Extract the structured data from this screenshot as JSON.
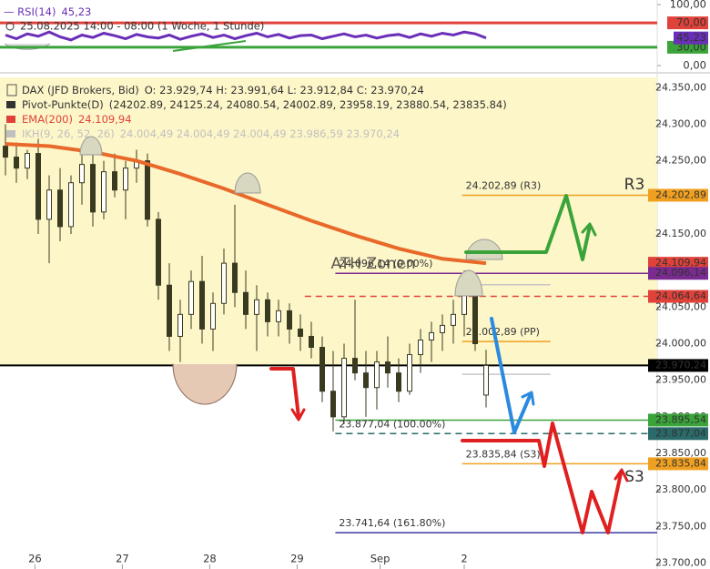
{
  "chart_data": [
    {
      "type": "line",
      "title": "RSI(14)",
      "subtitle": "25.08.2025 14:00 - 08:00 (1 Woche, 1 Stunde)",
      "series": [
        {
          "name": "RSI(14)",
          "color": "#6a2fb8",
          "last_label": "45,23",
          "values": [
            50,
            44,
            52,
            48,
            55,
            47,
            42,
            50,
            46,
            53,
            49,
            44,
            51,
            47,
            45,
            50,
            43,
            48,
            52,
            46,
            50,
            44,
            49,
            53,
            47,
            51,
            45,
            49,
            50,
            44,
            48,
            52,
            47,
            50,
            45,
            49,
            51,
            46,
            52,
            48,
            53,
            50,
            55,
            52,
            45.23
          ]
        }
      ],
      "ylim": [
        -9,
        107.5
      ],
      "yticks": [
        {
          "value": 100,
          "label": "100,00"
        },
        {
          "value": 0,
          "label": "0,00"
        }
      ],
      "levels": [
        {
          "value": 70,
          "label": "70,00",
          "color": "#e0423a"
        },
        {
          "value": 30,
          "label": "30,00",
          "color": "#3aa33a"
        }
      ]
    },
    {
      "type": "candlestick",
      "title": "DAX (JFD Brokers, Bid)",
      "ohlc_label": "O: 23.929,74  H: 23.991,64  L: 23.912,84  C: 23.970,24",
      "indicators": [
        {
          "name": "Pivot-Punkte(D)",
          "text": "(24202.89, 24125.24, 24080.54, 24002.89, 23958.19, 23880.54, 23835.84)",
          "color": "#333333"
        },
        {
          "name": "EMA(200)",
          "text": "24.109,94",
          "color": "#e0423a"
        },
        {
          "name": "IKH(9, 26, 52, 26)",
          "text": "24.004,49  24.004,49  24.004,49  23.986,59  23.970,24",
          "color": "#c0c0c0"
        }
      ],
      "candles": [
        [
          24270,
          24300,
          24230,
          24255
        ],
        [
          24255,
          24275,
          24220,
          24240
        ],
        [
          24240,
          24265,
          24225,
          24260
        ],
        [
          24260,
          24280,
          24150,
          24170
        ],
        [
          24170,
          24230,
          24110,
          24210
        ],
        [
          24210,
          24240,
          24140,
          24160
        ],
        [
          24160,
          24230,
          24150,
          24220
        ],
        [
          24220,
          24260,
          24190,
          24245
        ],
        [
          24245,
          24270,
          24160,
          24180
        ],
        [
          24180,
          24250,
          24170,
          24235
        ],
        [
          24235,
          24260,
          24200,
          24210
        ],
        [
          24210,
          24250,
          24170,
          24240
        ],
        [
          24240,
          24265,
          24220,
          24250
        ],
        [
          24250,
          24260,
          24160,
          24170
        ],
        [
          24170,
          24180,
          24060,
          24080
        ],
        [
          24080,
          24110,
          23990,
          24010
        ],
        [
          24010,
          24060,
          23975,
          24040
        ],
        [
          24040,
          24100,
          24020,
          24085
        ],
        [
          24085,
          24120,
          24000,
          24020
        ],
        [
          24020,
          24070,
          23990,
          24055
        ],
        [
          24055,
          24130,
          24040,
          24110
        ],
        [
          24110,
          24190,
          24050,
          24070
        ],
        [
          24070,
          24100,
          24020,
          24040
        ],
        [
          24040,
          24080,
          23990,
          24060
        ],
        [
          24060,
          24070,
          24010,
          24030
        ],
        [
          24030,
          24060,
          24010,
          24045
        ],
        [
          24045,
          24055,
          24000,
          24020
        ],
        [
          24020,
          24040,
          23990,
          24010
        ],
        [
          24010,
          24030,
          23980,
          23995
        ],
        [
          23995,
          24010,
          23920,
          23935
        ],
        [
          23935,
          23990,
          23880,
          23900
        ],
        [
          23900,
          24000,
          23890,
          23980
        ],
        [
          23980,
          24060,
          23950,
          23960
        ],
        [
          23960,
          23990,
          23900,
          23940
        ],
        [
          23940,
          23990,
          23910,
          23975
        ],
        [
          23975,
          24010,
          23940,
          23960
        ],
        [
          23960,
          23980,
          23920,
          23935
        ],
        [
          23935,
          24000,
          23930,
          23985
        ],
        [
          23985,
          24020,
          23960,
          24005
        ],
        [
          24005,
          24030,
          23975,
          24015
        ],
        [
          24015,
          24040,
          23990,
          24025
        ],
        [
          24025,
          24060,
          24000,
          24040
        ],
        [
          24040,
          24100,
          24010,
          24070
        ],
        [
          24070,
          24080,
          23990,
          24000
        ],
        [
          23929.74,
          23991.64,
          23912.84,
          23970.24
        ]
      ],
      "up_color": "#ffffff",
      "down_color": "#3a3a20",
      "ema": {
        "color": "#e8692a",
        "x": [
          0,
          4,
          8,
          12,
          16,
          20,
          24,
          28,
          32,
          36,
          40,
          44
        ],
        "values": [
          24273,
          24270,
          24262,
          24250,
          24232,
          24212,
          24190,
          24168,
          24148,
          24130,
          24116,
          24109.94
        ]
      },
      "ylim": [
        23692,
        24364
      ],
      "yticks": [
        {
          "value": 24350,
          "label": "24.350,00"
        },
        {
          "value": 24300,
          "label": "24.300,00"
        },
        {
          "value": 24250,
          "label": "24.250,00"
        },
        {
          "value": 24200,
          "label": "24.200,00"
        },
        {
          "value": 24150,
          "label": "24.150,00"
        },
        {
          "value": 24100,
          "label": "24.100,00"
        },
        {
          "value": 24050,
          "label": "24.050,00"
        },
        {
          "value": 24000,
          "label": "24.000,00"
        },
        {
          "value": 23950,
          "label": "23.950,00"
        },
        {
          "value": 23900,
          "label": "23.900,00"
        },
        {
          "value": 23850,
          "label": "23.850,00"
        },
        {
          "value": 23800,
          "label": "23.800,00"
        },
        {
          "value": 23750,
          "label": "23.750,00"
        },
        {
          "value": 23700,
          "label": "23.700,00"
        }
      ],
      "xticks": [
        {
          "value": 2.7,
          "label": "26"
        },
        {
          "value": 10.7,
          "label": "27"
        },
        {
          "value": 18.7,
          "label": "28"
        },
        {
          "value": 26.7,
          "label": "29"
        },
        {
          "value": 34.3,
          "label": "Sep"
        },
        {
          "value": 42,
          "label": "2"
        }
      ],
      "levels": [
        {
          "value": 24202.89,
          "label": "24.202,89 (R3)",
          "axis_label": "24.202,89",
          "color": "#f0a020",
          "from": 41.8
        },
        {
          "value": 24109.94,
          "axis_label": "24.109,94",
          "color": "#e0423a"
        },
        {
          "value": 24096.14,
          "label": "24.096,14 (0.00%)",
          "axis_label": "24.096,14",
          "color": "#7a2a90",
          "from": 30.2
        },
        {
          "value": 24080.54,
          "color": "#c8c8c8",
          "from": 41.8,
          "to": 49.9
        },
        {
          "value": 24064.64,
          "axis_label": "24.064,64",
          "color": "#e0423a",
          "dash": true,
          "from": 27.4
        },
        {
          "value": 24002.89,
          "label": "24.002,89 (PP)",
          "color": "#f0a020",
          "from": 41.8,
          "to": 49.9
        },
        {
          "value": 23970.24,
          "axis_label": "23.970,24",
          "color": "#000000",
          "from": -0.5
        },
        {
          "value": 23958.19,
          "color": "#c8c8c8",
          "from": 41.8,
          "to": 49.9
        },
        {
          "value": 23895.54,
          "axis_label": "23.895,54",
          "color": "#3aa33a",
          "from": 30.2
        },
        {
          "value": 23877.04,
          "label": "23.877,04 (100.00%)",
          "axis_label": "23.877,04",
          "color": "#2a6a6a",
          "dash": true,
          "from": 30.2
        },
        {
          "value": 23835.84,
          "label": "23.835,84 (S3)",
          "axis_label": "23.835,84",
          "color": "#f0a020",
          "from": 41.8
        },
        {
          "value": 23741.64,
          "label": "23.741,64 (161.80%)",
          "color": "#3a3aa0",
          "from": 30.2
        }
      ],
      "annotations": [
        {
          "text": "R3",
          "color": "#f0a020"
        },
        {
          "text": "S3",
          "color": "#f0a020"
        },
        {
          "text": "ATH Zonen",
          "color": "#f0a020"
        }
      ]
    }
  ]
}
